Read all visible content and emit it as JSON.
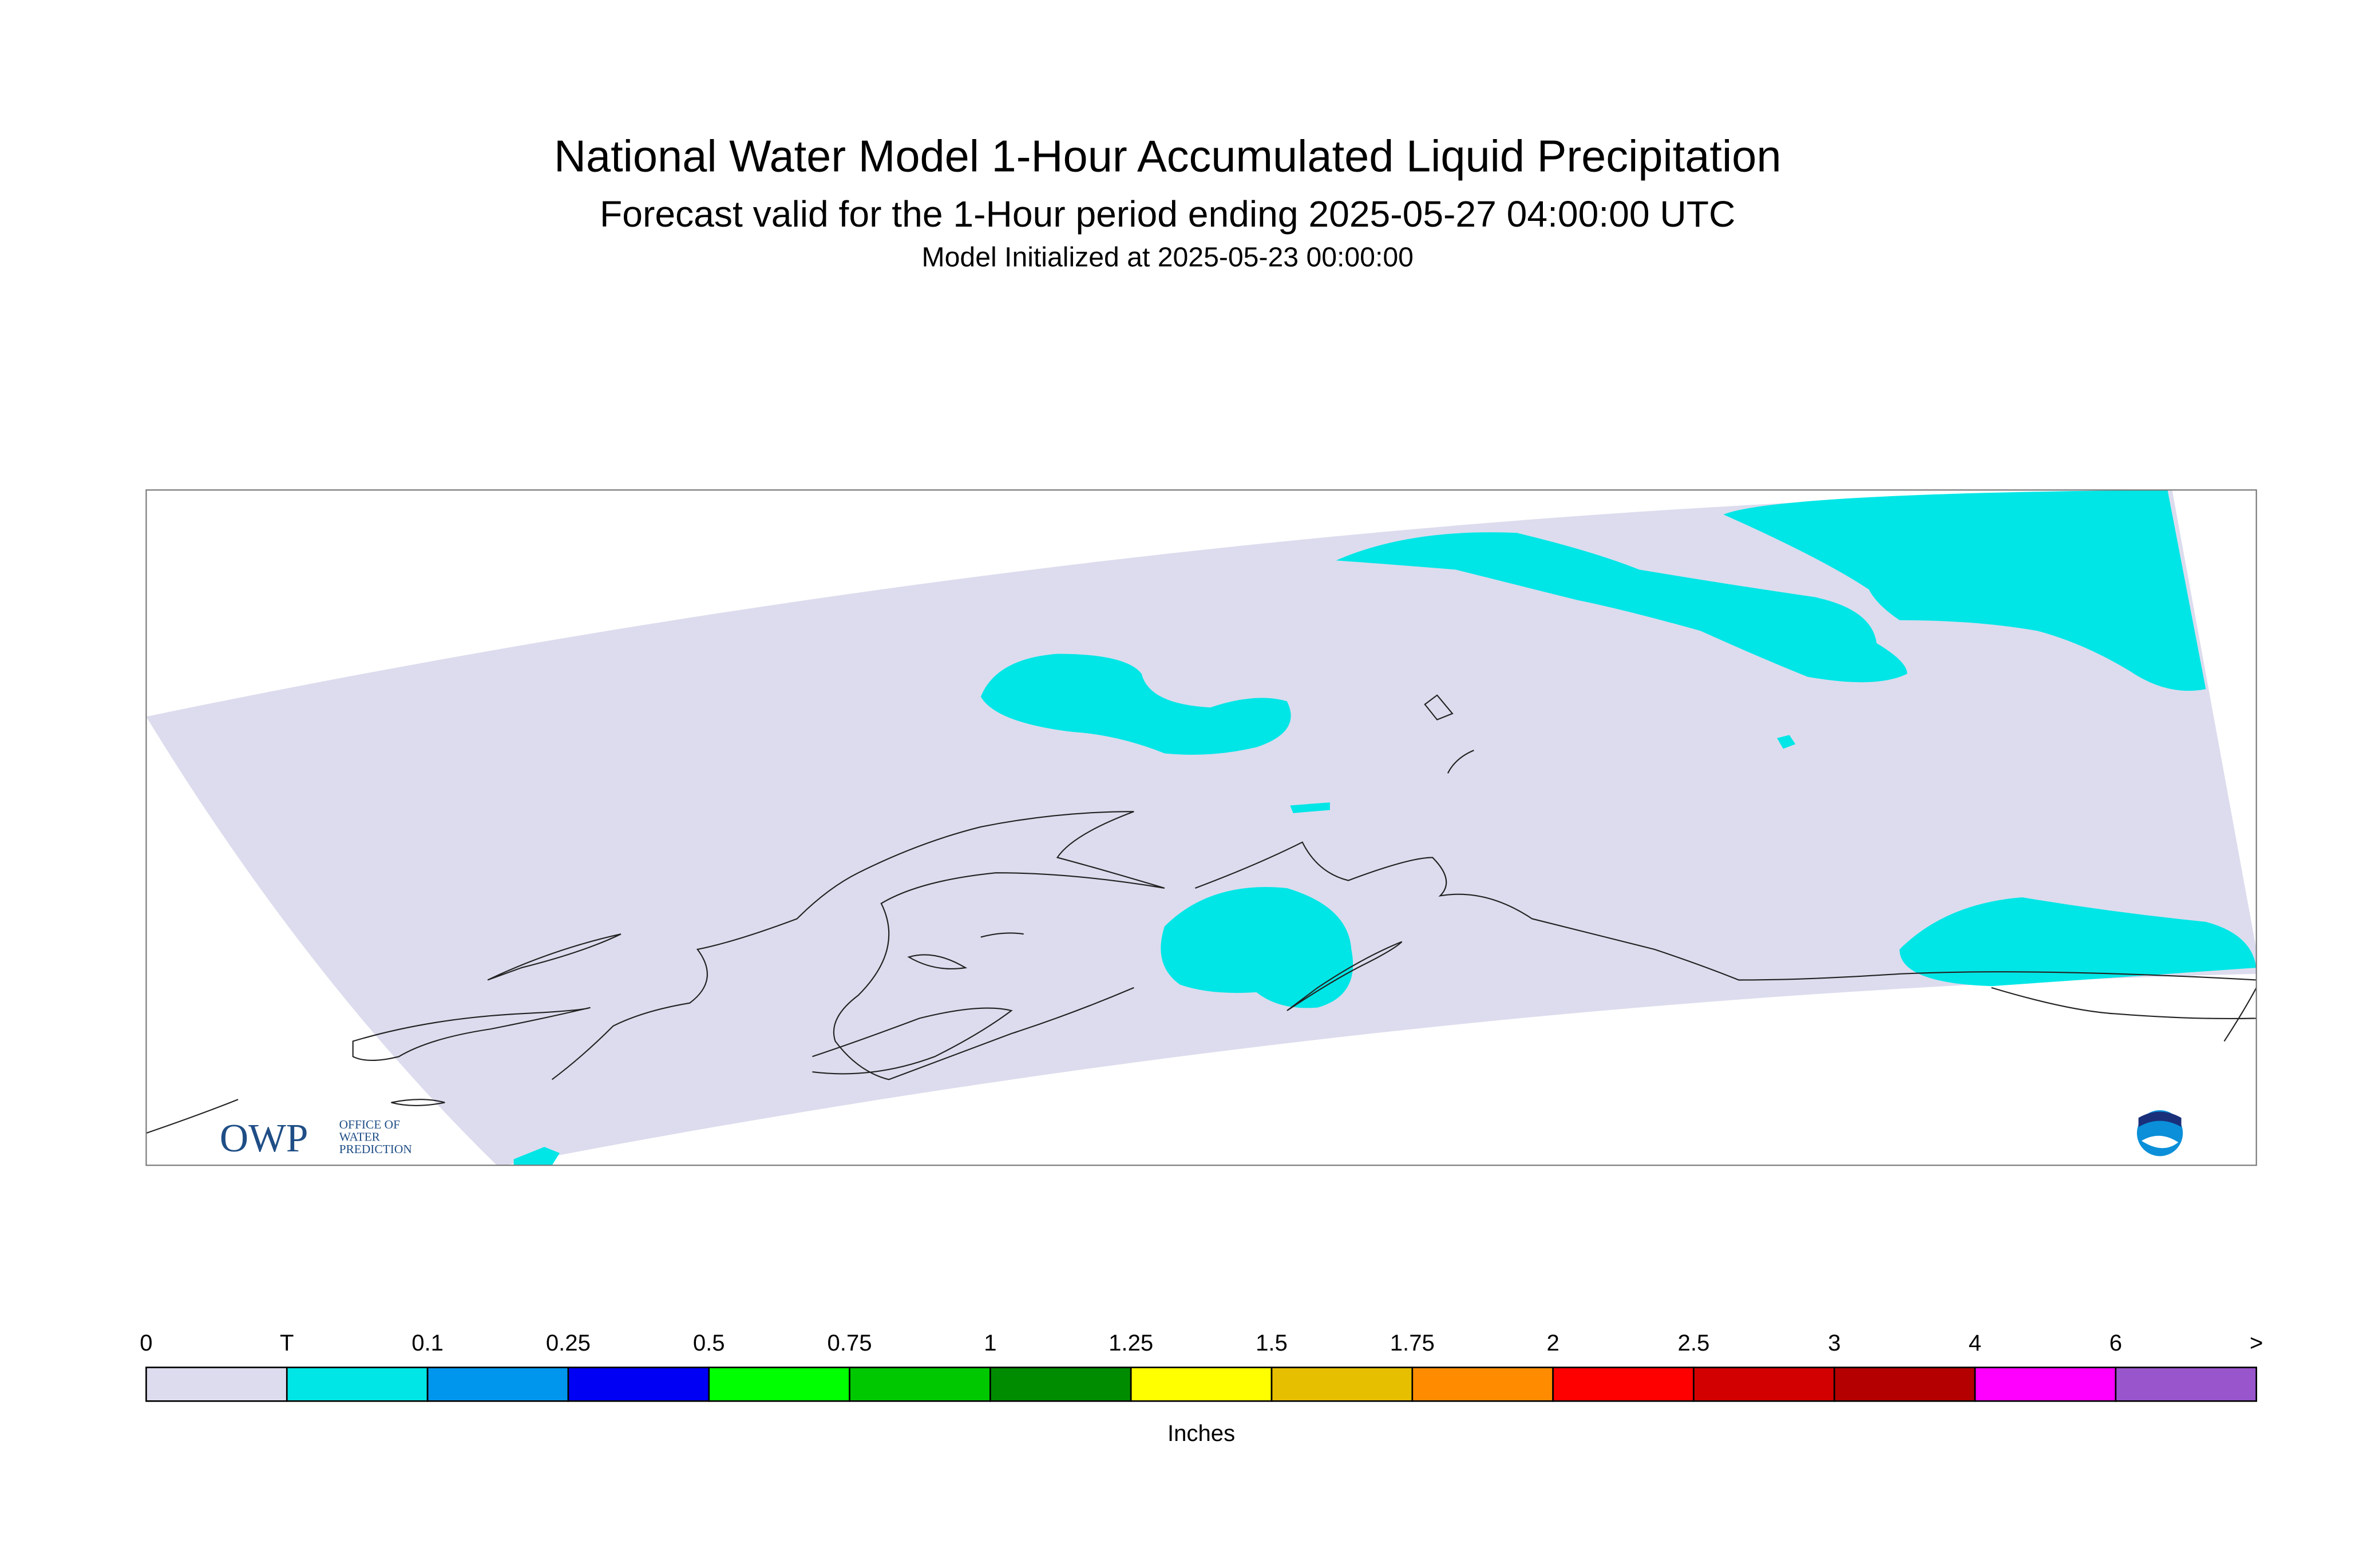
{
  "header": {
    "title": "National Water Model 1-Hour Accumulated Liquid Precipitation",
    "subtitle": "Forecast valid for the 1-Hour period ending 2025-05-27 04:00:00 UTC",
    "init": "Model Initialized at 2025-05-23 00:00:00"
  },
  "logo": {
    "owp": "OWP",
    "line1": "OFFICE OF",
    "line2": "WATER",
    "line3": "PREDICTION"
  },
  "legend": {
    "labels": [
      "0",
      "T",
      "0.1",
      "0.25",
      "0.5",
      "0.75",
      "1",
      "1.25",
      "1.5",
      "1.75",
      "2",
      "2.5",
      "3",
      "4",
      "6",
      ">"
    ],
    "colors": [
      "#dcdcee",
      "#00e6e6",
      "#0096ee",
      "#0000f5",
      "#00ff00",
      "#00c800",
      "#008c00",
      "#ffff00",
      "#e6bf00",
      "#ff8c00",
      "#ff0000",
      "#d20000",
      "#b40000",
      "#ff00ff",
      "#9955cc"
    ],
    "unit": "Inches"
  }
}
